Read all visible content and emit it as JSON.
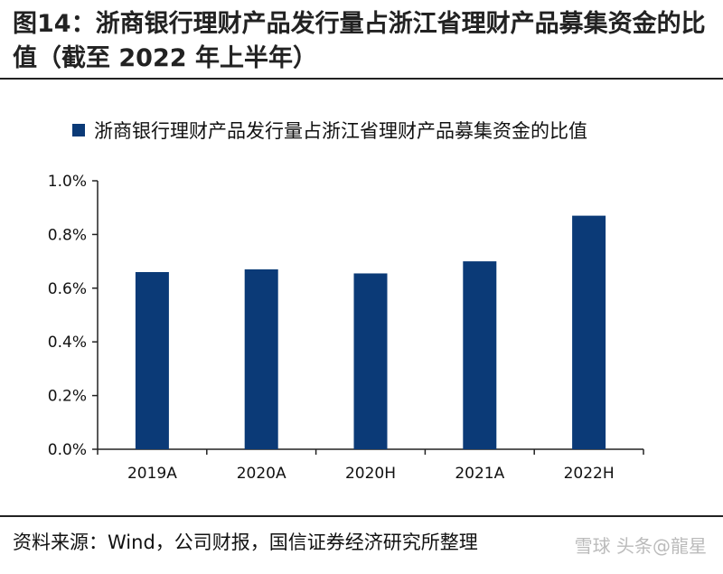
{
  "figure": {
    "title": "图14：浙商银行理财产品发行量占浙江省理财产品募集资金的比值（截至 2022 年上半年）",
    "source": "资料来源：Wind，公司财报，国信证券经济研究所整理",
    "watermark": "雪球 头条@龍星"
  },
  "colors": {
    "bar": "#0b3a77",
    "axis": "#222222"
  },
  "chart_data": {
    "type": "bar",
    "title": "",
    "xlabel": "",
    "ylabel": "",
    "categories": [
      "2019A",
      "2020A",
      "2020H",
      "2021A",
      "2022H"
    ],
    "series": [
      {
        "name": "浙商银行理财产品发行量占浙江省理财产品募集资金的比值",
        "values": [
          0.66,
          0.67,
          0.655,
          0.7,
          0.87
        ]
      }
    ],
    "ylim": [
      0,
      1.0
    ],
    "yticks": [
      0.0,
      0.2,
      0.4,
      0.6,
      0.8,
      1.0
    ],
    "ytick_labels": [
      "0.0%",
      "0.2%",
      "0.4%",
      "0.6%",
      "0.8%",
      "1.0%"
    ],
    "legend_position": "top-left",
    "grid": false
  }
}
